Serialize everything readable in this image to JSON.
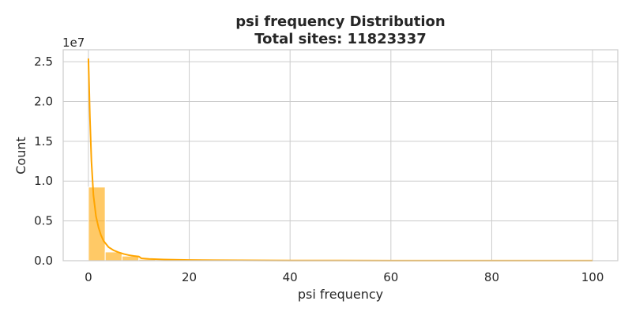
{
  "chart_data": {
    "type": "bar",
    "title_line1": "psi frequency Distribution",
    "title_line2": "Total sites: 11823337",
    "xlabel": "psi frequency",
    "ylabel": "Count",
    "y_offset_label": "1e7",
    "xlim": [
      -5,
      105
    ],
    "ylim": [
      0,
      26500000
    ],
    "x_ticks": [
      0,
      20,
      40,
      60,
      80,
      100
    ],
    "x_tick_labels": [
      "0",
      "20",
      "40",
      "60",
      "80",
      "100"
    ],
    "y_ticks": [
      0,
      5000000,
      10000000,
      15000000,
      20000000,
      25000000
    ],
    "y_tick_labels": [
      "0.0",
      "0.5",
      "1.0",
      "1.5",
      "2.0",
      "2.5"
    ],
    "bin_width": 3.33,
    "bins": [
      {
        "x0": 0.0,
        "count": 9250000
      },
      {
        "x0": 3.33,
        "count": 1100000
      },
      {
        "x0": 6.67,
        "count": 580000
      },
      {
        "x0": 10.0,
        "count": 180000
      },
      {
        "x0": 13.33,
        "count": 120000
      },
      {
        "x0": 16.67,
        "count": 90000
      },
      {
        "x0": 20.0,
        "count": 60000
      },
      {
        "x0": 23.33,
        "count": 50000
      },
      {
        "x0": 26.67,
        "count": 40000
      },
      {
        "x0": 30.0,
        "count": 35000
      },
      {
        "x0": 33.33,
        "count": 30000
      },
      {
        "x0": 36.67,
        "count": 25000
      },
      {
        "x0": 40.0,
        "count": 22000
      },
      {
        "x0": 43.33,
        "count": 20000
      },
      {
        "x0": 46.67,
        "count": 18000
      },
      {
        "x0": 50.0,
        "count": 30000
      },
      {
        "x0": 53.33,
        "count": 15000
      },
      {
        "x0": 56.67,
        "count": 13000
      },
      {
        "x0": 60.0,
        "count": 12000
      },
      {
        "x0": 63.33,
        "count": 11000
      },
      {
        "x0": 66.67,
        "count": 10000
      },
      {
        "x0": 70.0,
        "count": 9000
      },
      {
        "x0": 73.33,
        "count": 8000
      },
      {
        "x0": 76.67,
        "count": 7500
      },
      {
        "x0": 80.0,
        "count": 7000
      },
      {
        "x0": 83.33,
        "count": 6500
      },
      {
        "x0": 86.67,
        "count": 6000
      },
      {
        "x0": 90.0,
        "count": 5500
      },
      {
        "x0": 93.33,
        "count": 5000
      },
      {
        "x0": 96.67,
        "count": 8000
      }
    ],
    "kde": {
      "x": [
        0.0,
        0.3,
        0.6,
        1.0,
        1.5,
        2.0,
        2.5,
        3.0,
        4.0,
        5.0,
        6.0,
        7.0,
        8.0,
        9.0,
        10.0,
        10.5,
        12.0,
        15.0,
        20.0,
        25.0,
        30.0,
        40.0,
        50.0,
        60.0,
        70.0,
        80.0,
        90.0,
        100.0
      ],
      "y": [
        25400000,
        18000000,
        12500000,
        8200000,
        5600000,
        4200000,
        3200000,
        2500000,
        1700000,
        1300000,
        1050000,
        850000,
        700000,
        600000,
        520000,
        300000,
        220000,
        150000,
        90000,
        60000,
        45000,
        30000,
        25000,
        18000,
        14000,
        11000,
        9000,
        8000
      ]
    },
    "bar_color": "#ffa500",
    "bar_opacity": 0.6,
    "kde_color": "#ffa500",
    "grid": true,
    "background": "#ffffff",
    "grid_color": "#cccccc"
  }
}
